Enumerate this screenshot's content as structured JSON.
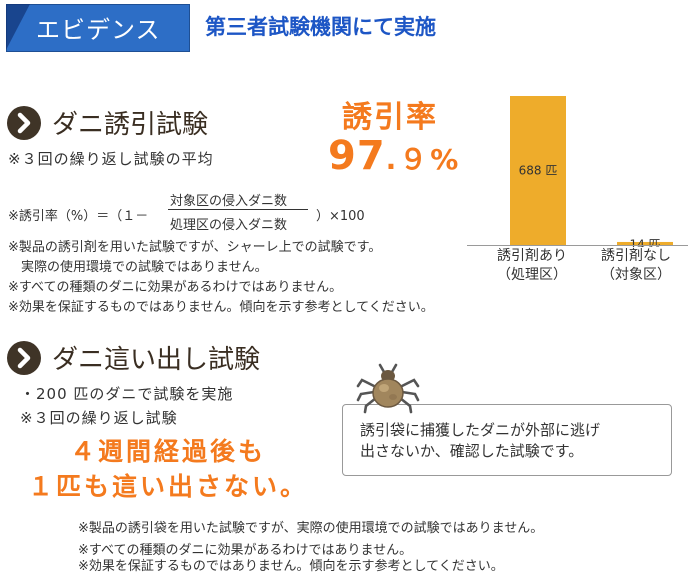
{
  "header": {
    "tag_label": "エビデンス",
    "title": "第三者試験機関にて実施"
  },
  "attract_test": {
    "title": "ダニ誘引試験",
    "note": "※３回の繰り返し試験の平均",
    "rate_label": "誘引率",
    "rate_integer": "97",
    "rate_decimal": ".９%",
    "formula_prefix": "※誘引率（%）＝（１－",
    "formula_numerator": "対象区の侵入ダニ数",
    "formula_denominator": "処理区の侵入ダニ数",
    "formula_suffix": "）×100",
    "disclaimers": [
      "※製品の誘引剤を用いた試験ですが、シャーレ上での試験です。",
      "　実際の使用環境での試験ではありません。",
      "※すべての種類のダニに効果があるわけではありません。",
      "※効果を保証するものではありません。傾向を示す参考としてください。"
    ]
  },
  "chart_data": {
    "type": "bar",
    "categories": [
      "誘引剤あり（処理区）",
      "誘引剤なし（対象区）"
    ],
    "category_lines": [
      [
        "誘引剤あり",
        "（処理区）"
      ],
      [
        "誘引剤なし",
        "（対象区）"
      ]
    ],
    "values": [
      688,
      14
    ],
    "value_labels": [
      "688 匹",
      "14 匹"
    ],
    "bar_color": "#eeac2b",
    "ylim": [
      0,
      688
    ]
  },
  "crawl_test": {
    "title": "ダニ這い出し試験",
    "notes": [
      "・200 匹のダニで試験を実施",
      "※３回の繰り返し試験"
    ],
    "highlight": [
      "４週間経過後も",
      "１匹も這い出さない。"
    ],
    "bubble_lines": [
      "誘引袋に捕獲したダニが外部に逃げ",
      "出さないか、確認した試験です。"
    ],
    "disclaimers": [
      "※製品の誘引袋を用いた試験ですが、実際の使用環境での試験ではありません。",
      "※すべての種類のダニに効果があるわけではありません。",
      "※効果を保証するものではありません。傾向を示す参考としてください。"
    ]
  },
  "colors": {
    "header_blue": "#2d6ec6",
    "title_blue": "#1d56c5",
    "accent_orange": "#f47a1e",
    "icon_brown": "#3f3427"
  }
}
